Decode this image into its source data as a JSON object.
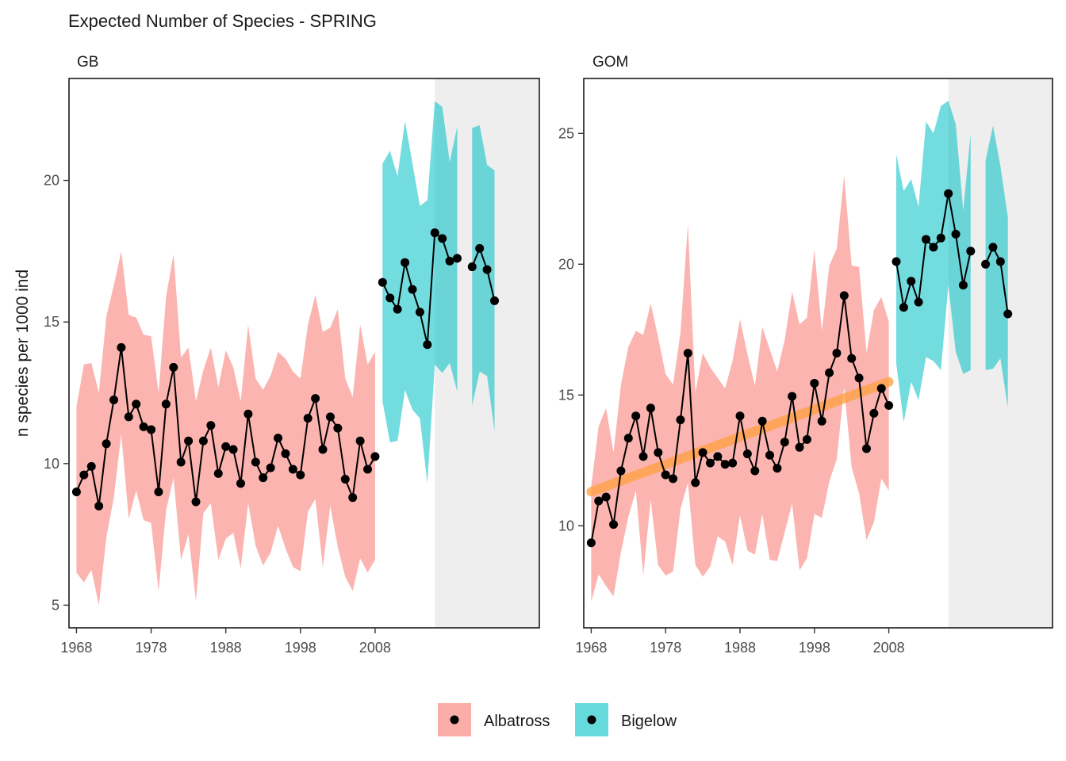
{
  "title": "Expected Number of Species - SPRING",
  "colors": {
    "Albatross": "#F8766D",
    "Bigelow": "#00BFC4",
    "trend": "#FFA040",
    "line": "#000000",
    "shade": "#EBEBEB"
  },
  "legend": {
    "items": [
      {
        "label": "Albatross",
        "color": "#F8766D"
      },
      {
        "label": "Bigelow",
        "color": "#00BFC4"
      }
    ]
  },
  "chart_data": [
    {
      "type": "line",
      "panel": "GB",
      "ylabel": "n species per 1000 ind",
      "xlabel": "",
      "xlim": [
        1967.0,
        2030.0
      ],
      "ylim": [
        4.2,
        23.6
      ],
      "xticks": [
        1968,
        1978,
        1988,
        1998,
        2008
      ],
      "yticks": [
        5,
        10,
        15,
        20
      ],
      "shaded_region": [
        2016,
        2030
      ],
      "series": [
        {
          "name": "Albatross",
          "x": [
            1968,
            1969,
            1970,
            1971,
            1972,
            1973,
            1974,
            1975,
            1976,
            1977,
            1978,
            1979,
            1980,
            1981,
            1982,
            1983,
            1984,
            1985,
            1986,
            1987,
            1988,
            1989,
            1990,
            1991,
            1992,
            1993,
            1994,
            1995,
            1996,
            1997,
            1998,
            1999,
            2000,
            2001,
            2002,
            2003,
            2004,
            2005,
            2006,
            2007,
            2008
          ],
          "y": [
            9.0,
            9.6,
            9.9,
            8.5,
            10.7,
            12.25,
            14.1,
            11.65,
            12.1,
            11.3,
            11.2,
            9.0,
            12.1,
            13.4,
            10.05,
            10.8,
            8.65,
            10.8,
            11.35,
            9.65,
            10.6,
            10.5,
            9.3,
            11.75,
            10.05,
            9.5,
            9.85,
            10.9,
            10.35,
            9.8,
            9.6,
            11.6,
            12.3,
            10.5,
            11.65,
            11.25,
            9.45,
            8.8,
            10.8,
            9.8,
            10.25
          ],
          "upper": [
            12.0,
            13.5,
            13.55,
            12.5,
            15.2,
            16.3,
            17.5,
            15.25,
            15.15,
            14.55,
            14.5,
            12.5,
            15.9,
            17.4,
            13.75,
            14.1,
            12.2,
            13.3,
            14.1,
            12.7,
            14.0,
            13.4,
            12.2,
            14.9,
            13.0,
            12.6,
            13.1,
            13.95,
            13.7,
            13.25,
            13.0,
            14.9,
            15.95,
            14.65,
            14.8,
            15.45,
            13.0,
            12.35,
            14.9,
            13.5,
            13.95
          ],
          "lower": [
            6.15,
            5.8,
            6.25,
            5.0,
            7.4,
            8.8,
            11.05,
            8.05,
            9.05,
            8.0,
            7.9,
            5.5,
            8.35,
            9.5,
            6.6,
            7.5,
            5.15,
            8.25,
            8.6,
            6.6,
            7.35,
            7.55,
            6.3,
            8.6,
            7.1,
            6.4,
            6.85,
            7.8,
            7.0,
            6.35,
            6.2,
            8.3,
            8.75,
            6.35,
            8.5,
            7.05,
            6.0,
            5.5,
            6.65,
            6.15,
            6.6
          ]
        },
        {
          "name": "Bigelow",
          "x": [
            2009,
            2010,
            2011,
            2012,
            2013,
            2014,
            2015,
            2016,
            2017,
            2018,
            2019,
            null,
            2021,
            2022,
            2023,
            2024
          ],
          "y": [
            16.4,
            15.85,
            15.45,
            17.1,
            16.15,
            15.35,
            14.2,
            18.15,
            17.95,
            17.15,
            17.25,
            null,
            16.95,
            17.6,
            16.85,
            15.75
          ],
          "upper": [
            20.6,
            21.05,
            20.15,
            22.1,
            20.6,
            19.1,
            19.3,
            22.8,
            22.6,
            20.65,
            21.9,
            null,
            21.85,
            21.95,
            20.55,
            20.35
          ],
          "lower": [
            12.2,
            10.75,
            10.8,
            12.6,
            11.9,
            11.6,
            9.3,
            13.5,
            13.2,
            13.55,
            12.55,
            null,
            12.05,
            13.25,
            13.1,
            11.15
          ]
        }
      ]
    },
    {
      "type": "line",
      "panel": "GOM",
      "ylabel": "",
      "xlabel": "",
      "xlim": [
        1967.0,
        2030.0
      ],
      "ylim": [
        6.1,
        27.1
      ],
      "xticks": [
        1968,
        1978,
        1988,
        1998,
        2008
      ],
      "yticks": [
        10,
        15,
        20,
        25
      ],
      "shaded_region": [
        2016,
        2030
      ],
      "trend": {
        "x": [
          1968,
          2008
        ],
        "y": [
          11.3,
          15.5
        ]
      },
      "series": [
        {
          "name": "Albatross",
          "x": [
            1968,
            1969,
            1970,
            1971,
            1972,
            1973,
            1974,
            1975,
            1976,
            1977,
            1978,
            1979,
            1980,
            1981,
            1982,
            1983,
            1984,
            1985,
            1986,
            1987,
            1988,
            1989,
            1990,
            1991,
            1992,
            1993,
            1994,
            1995,
            1996,
            1997,
            1998,
            1999,
            2000,
            2001,
            2002,
            2003,
            2004,
            2005,
            2006,
            2007,
            2008
          ],
          "y": [
            9.35,
            10.95,
            11.1,
            10.05,
            12.1,
            13.35,
            14.2,
            12.65,
            14.5,
            12.8,
            11.95,
            11.8,
            14.05,
            16.6,
            11.65,
            12.8,
            12.4,
            12.65,
            12.35,
            12.4,
            14.2,
            12.75,
            12.1,
            14.0,
            12.7,
            12.2,
            13.2,
            14.95,
            13.0,
            13.3,
            15.45,
            14.0,
            15.85,
            16.6,
            18.8,
            16.4,
            15.65,
            12.95,
            14.3,
            15.25,
            14.6
          ],
          "upper": [
            11.5,
            13.8,
            14.5,
            12.8,
            15.4,
            16.85,
            17.45,
            17.3,
            18.5,
            17.2,
            15.8,
            15.4,
            17.4,
            21.55,
            15.1,
            16.6,
            16.05,
            15.65,
            15.25,
            16.3,
            17.9,
            16.55,
            15.35,
            17.6,
            16.75,
            15.9,
            17.1,
            18.95,
            17.7,
            17.95,
            20.55,
            17.45,
            19.95,
            20.6,
            23.4,
            19.95,
            19.9,
            16.6,
            18.25,
            18.75,
            17.8
          ],
          "lower": [
            7.1,
            8.15,
            7.7,
            7.3,
            9.0,
            10.35,
            11.35,
            8.1,
            11.0,
            8.5,
            8.1,
            8.25,
            10.65,
            11.65,
            8.5,
            8.05,
            8.45,
            9.6,
            9.4,
            8.5,
            10.4,
            9.05,
            8.9,
            10.45,
            8.7,
            8.65,
            9.75,
            10.85,
            8.3,
            8.75,
            10.45,
            10.3,
            11.7,
            12.55,
            15.3,
            12.25,
            11.25,
            9.45,
            10.15,
            11.8,
            11.35
          ]
        },
        {
          "name": "Bigelow",
          "x": [
            2009,
            2010,
            2011,
            2012,
            2013,
            2014,
            2015,
            2016,
            2017,
            2018,
            2019,
            null,
            2021,
            2022,
            2023,
            2024
          ],
          "y": [
            20.1,
            18.35,
            19.35,
            18.55,
            20.95,
            20.65,
            21.0,
            22.7,
            21.15,
            19.2,
            20.5,
            null,
            20.0,
            20.65,
            20.1,
            18.1
          ],
          "upper": [
            24.2,
            22.8,
            23.25,
            22.2,
            25.45,
            25.0,
            26.05,
            26.25,
            25.35,
            22.05,
            25.0,
            null,
            23.95,
            25.3,
            23.75,
            21.8
          ],
          "lower": [
            16.2,
            13.95,
            15.5,
            14.8,
            16.45,
            16.3,
            15.95,
            19.2,
            16.65,
            15.8,
            15.95,
            null,
            15.95,
            16.0,
            16.4,
            14.5
          ]
        }
      ]
    }
  ]
}
